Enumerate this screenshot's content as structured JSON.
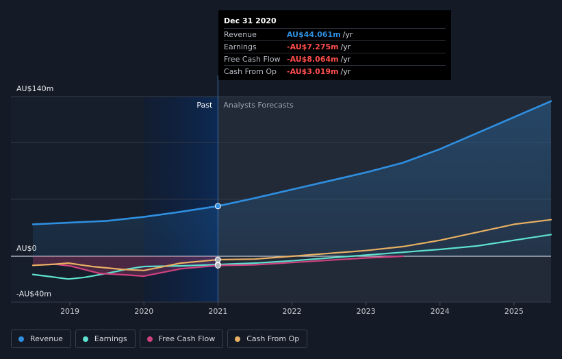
{
  "tooltip": {
    "date": "Dec 31 2020",
    "rows": [
      {
        "label": "Revenue",
        "value": "AU$44.061m",
        "unit": "/yr",
        "color": "#2f8fe0"
      },
      {
        "label": "Earnings",
        "value": "-AU$7.275m",
        "unit": "/yr",
        "color": "#ff4d4d"
      },
      {
        "label": "Free Cash Flow",
        "value": "-AU$8.064m",
        "unit": "/yr",
        "color": "#ff4d4d"
      },
      {
        "label": "Cash From Op",
        "value": "-AU$3.019m",
        "unit": "/yr",
        "color": "#ff4d4d"
      }
    ]
  },
  "legend": [
    {
      "label": "Revenue",
      "color": "#2f8fe0"
    },
    {
      "label": "Earnings",
      "color": "#5ee1cf"
    },
    {
      "label": "Free Cash Flow",
      "color": "#d0427f"
    },
    {
      "label": "Cash From Op",
      "color": "#e8b063"
    }
  ],
  "chart_data": {
    "type": "line",
    "y_unit": "AU$m",
    "ylim": [
      -40,
      140
    ],
    "y_tick_labels": [
      {
        "value": 140,
        "label": "AU$140m"
      },
      {
        "value": 0,
        "label": "AU$0"
      },
      {
        "value": -40,
        "label": "-AU$40m"
      }
    ],
    "xlim": [
      2018.5,
      2025.5
    ],
    "x_ticks": [
      2019,
      2020,
      2021,
      2022,
      2023,
      2024,
      2025
    ],
    "x_tick_labels": [
      "2019",
      "2020",
      "2021",
      "2022",
      "2023",
      "2024",
      "2025"
    ],
    "divider_x": 2021,
    "past_label": "Past",
    "forecast_label": "Analysts Forecasts",
    "highlight_x": 2021,
    "series": [
      {
        "name": "Revenue",
        "color": "#2f8fe0",
        "fill": true,
        "points": [
          [
            2018.5,
            28
          ],
          [
            2019,
            29.5
          ],
          [
            2019.5,
            31
          ],
          [
            2020,
            34.5
          ],
          [
            2020.5,
            39
          ],
          [
            2021,
            44
          ],
          [
            2021.5,
            51
          ],
          [
            2022,
            58.5
          ],
          [
            2022.5,
            66
          ],
          [
            2023,
            73.5
          ],
          [
            2023.5,
            82
          ],
          [
            2024,
            94
          ],
          [
            2024.5,
            108
          ],
          [
            2025,
            122
          ],
          [
            2025.5,
            136
          ]
        ]
      },
      {
        "name": "Earnings",
        "color": "#5ee1cf",
        "points": [
          [
            2018.5,
            -16
          ],
          [
            2018.75,
            -18
          ],
          [
            2018.98,
            -20
          ],
          [
            2019.2,
            -18.5
          ],
          [
            2019.5,
            -15
          ],
          [
            2019.8,
            -11
          ],
          [
            2020,
            -9
          ],
          [
            2020.5,
            -8.5
          ],
          [
            2021,
            -7.3
          ],
          [
            2021.5,
            -6
          ],
          [
            2022,
            -4
          ],
          [
            2022.5,
            -1.5
          ],
          [
            2023,
            1
          ],
          [
            2023.5,
            3.5
          ],
          [
            2024,
            6
          ],
          [
            2024.5,
            9
          ],
          [
            2025,
            14
          ],
          [
            2025.5,
            19
          ]
        ]
      },
      {
        "name": "Free Cash Flow",
        "color": "#d0427f",
        "points": [
          [
            2018.5,
            -8
          ],
          [
            2018.8,
            -7
          ],
          [
            2019,
            -8.5
          ],
          [
            2019.4,
            -15
          ],
          [
            2019.8,
            -16.5
          ],
          [
            2020,
            -17.5
          ],
          [
            2020.5,
            -11
          ],
          [
            2021,
            -8.1
          ],
          [
            2021.5,
            -7.5
          ],
          [
            2022,
            -5.5
          ],
          [
            2022.5,
            -3.5
          ],
          [
            2023,
            -1.5
          ],
          [
            2023.5,
            0
          ]
        ]
      },
      {
        "name": "Cash From Op",
        "color": "#e8b063",
        "points": [
          [
            2018.5,
            -8
          ],
          [
            2018.8,
            -7
          ],
          [
            2018.98,
            -6
          ],
          [
            2019.3,
            -9
          ],
          [
            2019.7,
            -11.5
          ],
          [
            2020,
            -12.5
          ],
          [
            2020.5,
            -6
          ],
          [
            2021,
            -3
          ],
          [
            2021.5,
            -2.5
          ],
          [
            2022,
            0
          ],
          [
            2022.5,
            2.5
          ],
          [
            2023,
            5
          ],
          [
            2023.5,
            8.5
          ],
          [
            2024,
            14
          ],
          [
            2024.5,
            21
          ],
          [
            2025,
            28
          ],
          [
            2025.5,
            32
          ]
        ]
      }
    ]
  }
}
